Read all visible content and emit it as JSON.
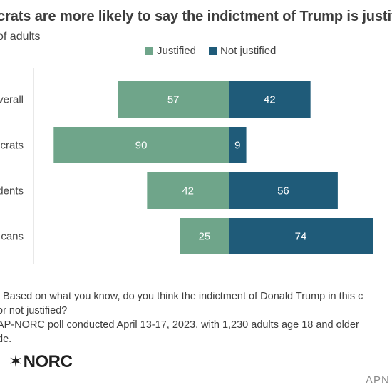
{
  "title": "crats are more likely to say the indictment of Trump is justifi",
  "subtitle": "of adults",
  "colors": {
    "justified": "#6fa58a",
    "not_justified": "#1f5b79",
    "label_text": "#ffffff"
  },
  "chart_data": {
    "type": "bar",
    "orientation": "horizontal-diverging",
    "categories": [
      "verall",
      "crats",
      "dents",
      "cans"
    ],
    "series": [
      {
        "name": "Justified",
        "values": [
          57,
          90,
          42,
          25
        ]
      },
      {
        "name": "Not justified",
        "values": [
          42,
          9,
          56,
          74
        ]
      }
    ],
    "legend_position": "top",
    "grid": false
  },
  "notes": {
    "line1": ": Based on what you know, do you think the indictment of Donald Trump in this c",
    "line2": "or not justified?",
    "line3": "AP-NORC poll conducted April 13-17, 2023, with 1,230 adults age 18 and older",
    "line4": "de."
  },
  "logo": {
    "star": "✶",
    "text": "NORC"
  },
  "watermark": "APN"
}
